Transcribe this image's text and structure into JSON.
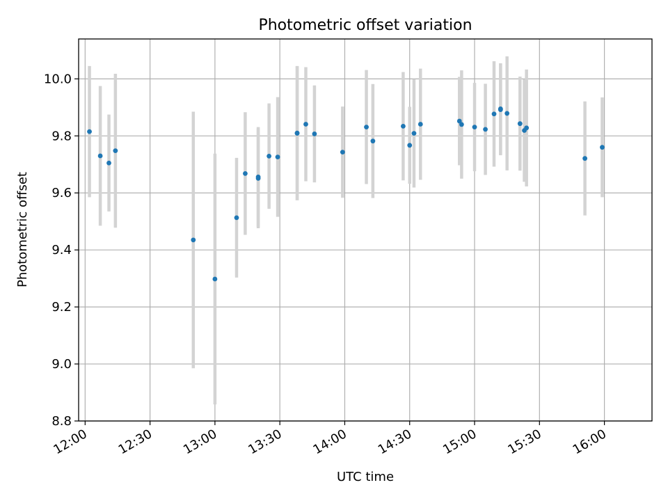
{
  "chart_data": {
    "type": "scatter",
    "title": "Photometric offset variation",
    "xlabel": "UTC time",
    "ylabel": "Photometric offset",
    "x_unit": "time of day (HH:MM UTC)",
    "xlim": [
      "11:57",
      "16:22"
    ],
    "ylim": [
      8.8,
      10.14
    ],
    "x_ticks": [
      "12:00",
      "12:30",
      "13:00",
      "13:30",
      "14:00",
      "14:30",
      "15:00",
      "15:30",
      "16:00"
    ],
    "y_ticks": [
      "8.8",
      "9.0",
      "9.2",
      "9.4",
      "9.6",
      "9.8",
      "10.0"
    ],
    "grid": true,
    "marker_color": "#1f77b4",
    "errorbar_color": "#d3d3d3",
    "series": [
      {
        "points": [
          {
            "x": "12:02",
            "y": 9.815,
            "err": 0.23
          },
          {
            "x": "12:07",
            "y": 9.73,
            "err": 0.245
          },
          {
            "x": "12:11",
            "y": 9.705,
            "err": 0.17
          },
          {
            "x": "12:14",
            "y": 9.748,
            "err": 0.27
          },
          {
            "x": "12:50",
            "y": 9.435,
            "err": 0.45
          },
          {
            "x": "13:00",
            "y": 9.298,
            "err": 0.44
          },
          {
            "x": "13:10",
            "y": 9.513,
            "err": 0.21
          },
          {
            "x": "13:14",
            "y": 9.668,
            "err": 0.215
          },
          {
            "x": "13:20",
            "y": 9.656,
            "err": 0.175
          },
          {
            "x": "13:20",
            "y": 9.651,
            "err": 0.175
          },
          {
            "x": "13:25",
            "y": 9.729,
            "err": 0.185
          },
          {
            "x": "13:29",
            "y": 9.726,
            "err": 0.21
          },
          {
            "x": "13:38",
            "y": 9.809,
            "err": 0.235
          },
          {
            "x": "13:38",
            "y": 9.81,
            "err": 0.235
          },
          {
            "x": "13:42",
            "y": 9.841,
            "err": 0.2
          },
          {
            "x": "13:46",
            "y": 9.807,
            "err": 0.17
          },
          {
            "x": "13:59",
            "y": 9.743,
            "err": 0.16
          },
          {
            "x": "14:10",
            "y": 9.831,
            "err": 0.2
          },
          {
            "x": "14:13",
            "y": 9.782,
            "err": 0.2
          },
          {
            "x": "14:27",
            "y": 9.834,
            "err": 0.19
          },
          {
            "x": "14:30",
            "y": 9.767,
            "err": 0.135
          },
          {
            "x": "14:32",
            "y": 9.809,
            "err": 0.19
          },
          {
            "x": "14:35",
            "y": 9.841,
            "err": 0.195
          },
          {
            "x": "14:53",
            "y": 9.852,
            "err": 0.155
          },
          {
            "x": "14:54",
            "y": 9.84,
            "err": 0.19
          },
          {
            "x": "15:00",
            "y": 9.831,
            "err": 0.155
          },
          {
            "x": "15:05",
            "y": 9.823,
            "err": 0.16
          },
          {
            "x": "15:09",
            "y": 9.877,
            "err": 0.185
          },
          {
            "x": "15:12",
            "y": 9.892,
            "err": 0.16
          },
          {
            "x": "15:12",
            "y": 9.895,
            "err": 0.16
          },
          {
            "x": "15:15",
            "y": 9.879,
            "err": 0.2
          },
          {
            "x": "15:21",
            "y": 9.843,
            "err": 0.165
          },
          {
            "x": "15:23",
            "y": 9.819,
            "err": 0.18
          },
          {
            "x": "15:24",
            "y": 9.828,
            "err": 0.205
          },
          {
            "x": "15:51",
            "y": 9.721,
            "err": 0.2
          },
          {
            "x": "15:59",
            "y": 9.76,
            "err": 0.175
          }
        ]
      }
    ]
  }
}
